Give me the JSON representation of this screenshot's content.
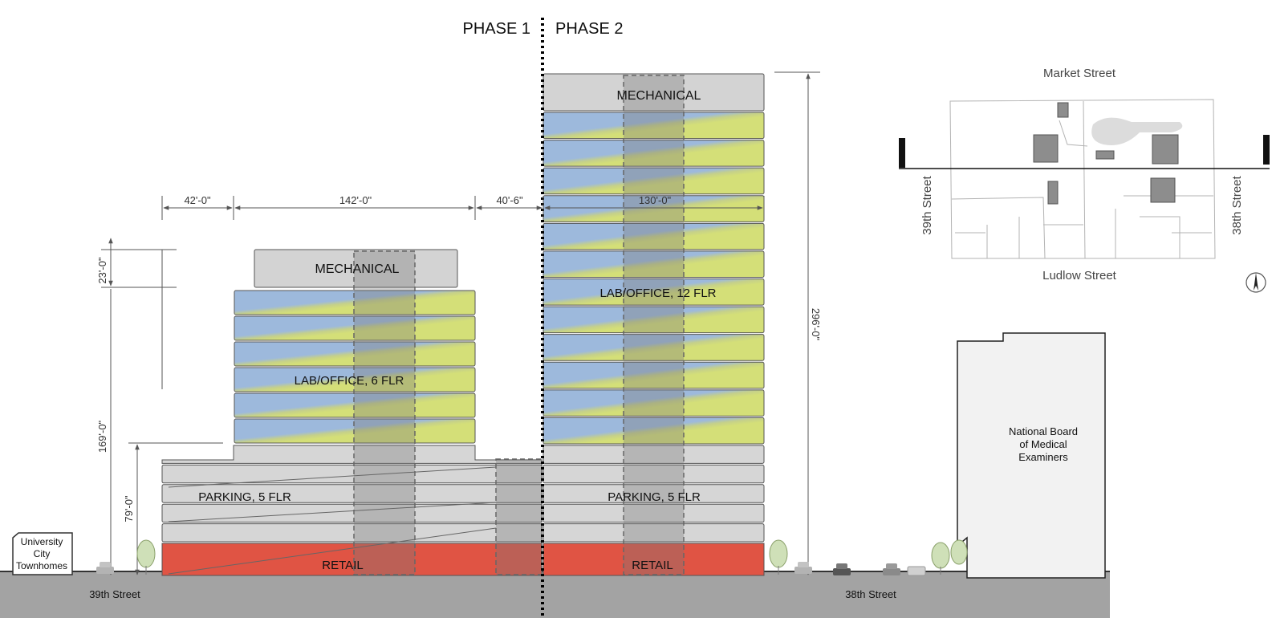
{
  "phases": {
    "phase1": "PHASE 1",
    "phase2": "PHASE 2"
  },
  "phase1_building": {
    "mechanical": "MECHANICAL",
    "lab_office": "LAB/OFFICE, 6 FLR",
    "parking": "PARKING, 5 FLR",
    "retail": "RETAIL",
    "lab_floors": 6,
    "parking_floors": 5
  },
  "phase2_building": {
    "mechanical": "MECHANICAL",
    "lab_office": "LAB/OFFICE, 12 FLR",
    "parking": "PARKING, 5 FLR",
    "retail": "RETAIL",
    "lab_floors": 12,
    "parking_floors": 5
  },
  "dimensions": {
    "width_1": "42'-0\"",
    "width_2": "142'-0\"",
    "width_3": "40'-6\"",
    "width_4": "130'-0\"",
    "height_mech": "23'-0\"",
    "height_169": "169'-0\"",
    "height_79": "79'-0\"",
    "height_296": "296'-0\""
  },
  "streets": {
    "left_street": "39th Street",
    "right_street": "38th Street"
  },
  "neighbors": {
    "townhomes": [
      "University",
      "City",
      "Townhomes"
    ],
    "nbme": [
      "National Board",
      "of Medical",
      "Examiners"
    ]
  },
  "keymap": {
    "north": "Market Street",
    "south": "Ludlow Street",
    "west": "39th Street",
    "east": "38th Street"
  },
  "colors": {
    "retail": "#e05444",
    "lab_blue": "#9db9dc",
    "lab_yellow": "#d4df78",
    "mechanical": "#d3d3d3",
    "parking": "#d6d6d6",
    "ground": "#a3a3a3"
  }
}
